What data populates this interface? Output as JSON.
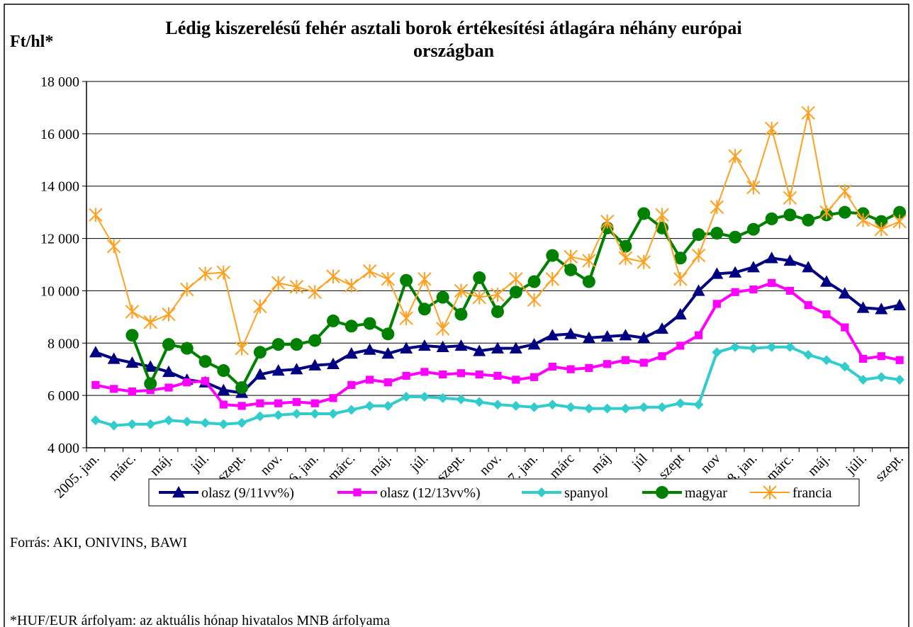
{
  "chart_data": {
    "type": "line",
    "title": "Lédig kiszerelésű fehér asztali borok értékesítési átlagára néhány európai országban",
    "y_label": "Ft/hl*",
    "categories": [
      "2005. jan.",
      null,
      "márc.",
      null,
      "máj.",
      null,
      "júl.",
      null,
      "szept.",
      null,
      "nov.",
      null,
      "2006. jan.",
      null,
      "márc.",
      null,
      "máj.",
      null,
      "júl.",
      null,
      "szept.",
      null,
      "nov.",
      null,
      "2007. jan.",
      null,
      "márc",
      null,
      "máj",
      null,
      "júl",
      null,
      "szept",
      null,
      "nov",
      null,
      "2008. jan.",
      null,
      "márc.",
      null,
      "máj.",
      null,
      "júli.",
      null,
      "szept."
    ],
    "series": [
      {
        "name": "olasz (9/11vv%)",
        "color": "#000080",
        "marker": "triangle",
        "values": [
          7650,
          7400,
          7250,
          7100,
          6900,
          6600,
          6500,
          6200,
          6100,
          6800,
          6950,
          7000,
          7150,
          7200,
          7600,
          7750,
          7600,
          7800,
          7900,
          7850,
          7900,
          7700,
          7800,
          7800,
          7950,
          8300,
          8350,
          8200,
          8250,
          8300,
          8200,
          8550,
          9100,
          10000,
          10650,
          10700,
          10900,
          11250,
          11150,
          10900,
          10350,
          9900,
          9350,
          9300,
          9450
        ]
      },
      {
        "name": "olasz (12/13vv%)",
        "color": "#ff00ff",
        "marker": "square",
        "values": [
          6400,
          6250,
          6150,
          6200,
          6300,
          6500,
          6550,
          5650,
          5600,
          5700,
          5700,
          5750,
          5700,
          5900,
          6400,
          6600,
          6500,
          6750,
          6900,
          6800,
          6850,
          6800,
          6750,
          6600,
          6700,
          7100,
          7000,
          7050,
          7200,
          7350,
          7250,
          7500,
          7900,
          8300,
          9500,
          9950,
          10050,
          10300,
          10000,
          9450,
          9100,
          8600,
          7400,
          7500,
          7350
        ]
      },
      {
        "name": "spanyol",
        "color": "#33cccc",
        "marker": "diamond",
        "values": [
          5050,
          4850,
          4900,
          4900,
          5050,
          5000,
          4950,
          4900,
          4950,
          5200,
          5250,
          5300,
          5300,
          5300,
          5450,
          5600,
          5600,
          5950,
          5950,
          5900,
          5850,
          5750,
          5650,
          5600,
          5550,
          5650,
          5550,
          5500,
          5500,
          5500,
          5550,
          5550,
          5700,
          5650,
          7650,
          7850,
          7800,
          7850,
          7850,
          7550,
          7350,
          7100,
          6600,
          6700,
          6600
        ]
      },
      {
        "name": "magyar",
        "color": "#008000",
        "marker": "circle",
        "values": [
          null,
          null,
          8300,
          6450,
          7950,
          7800,
          7300,
          6950,
          6300,
          7650,
          7950,
          7950,
          8100,
          8850,
          8650,
          8750,
          8350,
          10400,
          9300,
          9750,
          9100,
          10500,
          9200,
          9950,
          10350,
          11350,
          10800,
          10350,
          12400,
          11700,
          12950,
          12400,
          11250,
          12150,
          12200,
          12050,
          12350,
          12750,
          12900,
          12700,
          12900,
          13000,
          12950,
          12650,
          13000
        ]
      },
      {
        "name": "francia",
        "color": "#ffa020",
        "marker": "star",
        "values": [
          12900,
          11700,
          9200,
          8800,
          9100,
          10050,
          10650,
          10700,
          7800,
          9400,
          10300,
          10150,
          9950,
          10550,
          10200,
          10750,
          10450,
          8950,
          10450,
          8550,
          10000,
          9750,
          9850,
          10450,
          9650,
          10450,
          11300,
          11150,
          12650,
          11250,
          11100,
          12900,
          10450,
          11350,
          13200,
          15150,
          13950,
          16200,
          13550,
          16800,
          13000,
          13800,
          12700,
          12350,
          12650
        ]
      }
    ],
    "ylim": [
      4000,
      18000
    ],
    "yticks": [
      {
        "value": 4000,
        "label": "4 000"
      },
      {
        "value": 6000,
        "label": "6 000"
      },
      {
        "value": 8000,
        "label": "8 000"
      },
      {
        "value": 10000,
        "label": "10 000"
      },
      {
        "value": 12000,
        "label": "12 000"
      },
      {
        "value": 14000,
        "label": "14 000"
      },
      {
        "value": 16000,
        "label": "16 000"
      },
      {
        "value": 18000,
        "label": "18 000"
      }
    ],
    "grid": true,
    "legend": "bottom",
    "notes": [
      "Forrás: AKI, ONIVINS, BAWI",
      "*HUF/EUR árfolyam: az aktuális hónap hivatalos MNB árfolyama"
    ]
  }
}
